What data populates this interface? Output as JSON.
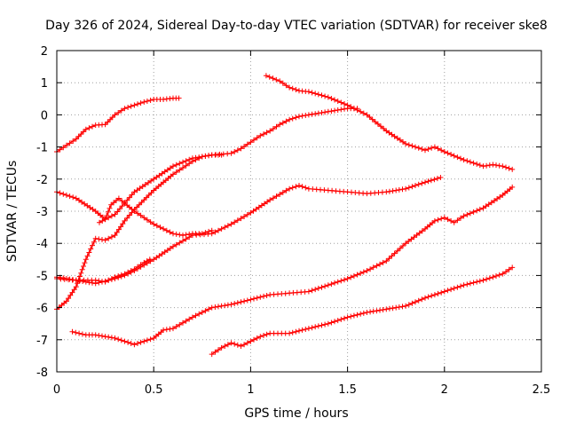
{
  "chart_data": {
    "type": "scatter",
    "title": "Day 326 of 2024, Sidereal Day-to-day VTEC variation (SDTVAR) for receiver ske8",
    "xlabel": "GPS time / hours",
    "ylabel": "SDTVAR / TECUs",
    "xlim": [
      0,
      2.5
    ],
    "ylim": [
      -8,
      2
    ],
    "xticks": [
      0,
      0.5,
      1,
      1.5,
      2,
      2.5
    ],
    "xtick_labels": [
      "0",
      "0.5",
      "1",
      "1.5",
      "2",
      "2.5"
    ],
    "yticks": [
      -8,
      -7,
      -6,
      -5,
      -4,
      -3,
      -2,
      -1,
      0,
      1,
      2
    ],
    "ytick_labels": [
      "-8",
      "-7",
      "-6",
      "-5",
      "-4",
      "-3",
      "-2",
      "-1",
      "0",
      "1",
      "2"
    ],
    "grid": true,
    "marker": "plus",
    "marker_color": "#ff0000",
    "series": [
      {
        "x": [
          0,
          0.05,
          0.1,
          0.15,
          0.2,
          0.25,
          0.3,
          0.35,
          0.4,
          0.45,
          0.5,
          0.55,
          0.6,
          0.63
        ],
        "y": [
          -1.15,
          -0.95,
          -0.75,
          -0.45,
          -0.32,
          -0.3,
          0.0,
          0.2,
          0.3,
          0.4,
          0.48,
          0.48,
          0.52,
          0.52
        ]
      },
      {
        "x": [
          0,
          0.1,
          0.2,
          0.25,
          0.3,
          0.35,
          0.4,
          0.5,
          0.6,
          0.7,
          0.8,
          0.9,
          0.95,
          1.0,
          1.05,
          1.1,
          1.15,
          1.2,
          1.25,
          1.3,
          1.4,
          1.5,
          1.55
        ],
        "y": [
          -2.4,
          -2.6,
          -3.0,
          -3.25,
          -3.1,
          -2.75,
          -2.4,
          -2.0,
          -1.6,
          -1.35,
          -1.25,
          -1.2,
          -1.05,
          -0.85,
          -0.65,
          -0.5,
          -0.3,
          -0.15,
          -0.05,
          0.0,
          0.1,
          0.2,
          0.2
        ]
      },
      {
        "x": [
          1.08,
          1.15,
          1.2,
          1.25,
          1.3,
          1.4,
          1.5,
          1.6,
          1.7,
          1.8,
          1.9,
          1.95,
          2.0,
          2.1,
          2.2,
          2.25,
          2.3,
          2.35
        ],
        "y": [
          1.22,
          1.05,
          0.85,
          0.75,
          0.72,
          0.55,
          0.3,
          0.0,
          -0.5,
          -0.9,
          -1.1,
          -1.0,
          -1.15,
          -1.4,
          -1.6,
          -1.55,
          -1.6,
          -1.7
        ]
      },
      {
        "x": [
          0,
          0.1,
          0.2,
          0.3,
          0.35,
          0.4,
          0.5,
          0.6,
          0.7,
          0.8,
          0.9,
          1.0,
          1.1,
          1.2,
          1.25,
          1.3,
          1.4,
          1.5,
          1.6,
          1.7,
          1.8,
          1.9,
          1.98
        ],
        "y": [
          -5.05,
          -5.15,
          -5.25,
          -5.1,
          -5.0,
          -4.85,
          -4.5,
          -4.1,
          -3.75,
          -3.7,
          -3.4,
          -3.05,
          -2.65,
          -2.3,
          -2.2,
          -2.3,
          -2.35,
          -2.4,
          -2.45,
          -2.4,
          -2.3,
          -2.1,
          -1.95
        ]
      },
      {
        "x": [
          0,
          0.05,
          0.1,
          0.15,
          0.2,
          0.25,
          0.3,
          0.35,
          0.4,
          0.45,
          0.5,
          0.55,
          0.6,
          0.65,
          0.7,
          0.75,
          0.8,
          0.85
        ],
        "y": [
          -6.05,
          -5.8,
          -5.35,
          -4.5,
          -3.85,
          -3.9,
          -3.75,
          -3.3,
          -2.95,
          -2.65,
          -2.35,
          -2.1,
          -1.85,
          -1.65,
          -1.45,
          -1.3,
          -1.25,
          -1.25
        ]
      },
      {
        "x": [
          0.08,
          0.15,
          0.2,
          0.25,
          0.3,
          0.35,
          0.4,
          0.45,
          0.5,
          0.55,
          0.6,
          0.7,
          0.8,
          0.9,
          1.0,
          1.1,
          1.2,
          1.3,
          1.4,
          1.5,
          1.6,
          1.7,
          1.8,
          1.9,
          1.95,
          2.0,
          2.05,
          2.1,
          2.2,
          2.3,
          2.35
        ],
        "y": [
          -6.75,
          -6.85,
          -6.85,
          -6.9,
          -6.95,
          -7.05,
          -7.15,
          -7.05,
          -6.95,
          -6.7,
          -6.65,
          -6.3,
          -6.0,
          -5.9,
          -5.75,
          -5.6,
          -5.55,
          -5.5,
          -5.3,
          -5.1,
          -4.85,
          -4.55,
          -4.0,
          -3.55,
          -3.3,
          -3.2,
          -3.35,
          -3.15,
          -2.9,
          -2.5,
          -2.25
        ]
      },
      {
        "x": [
          0.8,
          0.85,
          0.9,
          0.95,
          1.0,
          1.05,
          1.1,
          1.2,
          1.3,
          1.4,
          1.5,
          1.6,
          1.7,
          1.8,
          1.9,
          2.0,
          2.1,
          2.2,
          2.3,
          2.35
        ],
        "y": [
          -7.45,
          -7.25,
          -7.1,
          -7.2,
          -7.05,
          -6.9,
          -6.8,
          -6.8,
          -6.65,
          -6.5,
          -6.3,
          -6.15,
          -6.05,
          -5.95,
          -5.7,
          -5.5,
          -5.3,
          -5.15,
          -4.95,
          -4.75
        ]
      },
      {
        "x": [
          0.22,
          0.25,
          0.28,
          0.32,
          0.35,
          0.4,
          0.45,
          0.5,
          0.55,
          0.6,
          0.65,
          0.7,
          0.75,
          0.8
        ],
        "y": [
          -3.35,
          -3.25,
          -2.8,
          -2.6,
          -2.75,
          -3.0,
          -3.2,
          -3.4,
          -3.55,
          -3.7,
          -3.75,
          -3.7,
          -3.7,
          -3.6
        ]
      },
      {
        "x": [
          0,
          0.1,
          0.2,
          0.25,
          0.3,
          0.35,
          0.4,
          0.45,
          0.48
        ],
        "y": [
          -5.1,
          -5.15,
          -5.15,
          -5.2,
          -5.05,
          -4.95,
          -4.8,
          -4.6,
          -4.5
        ]
      }
    ]
  }
}
